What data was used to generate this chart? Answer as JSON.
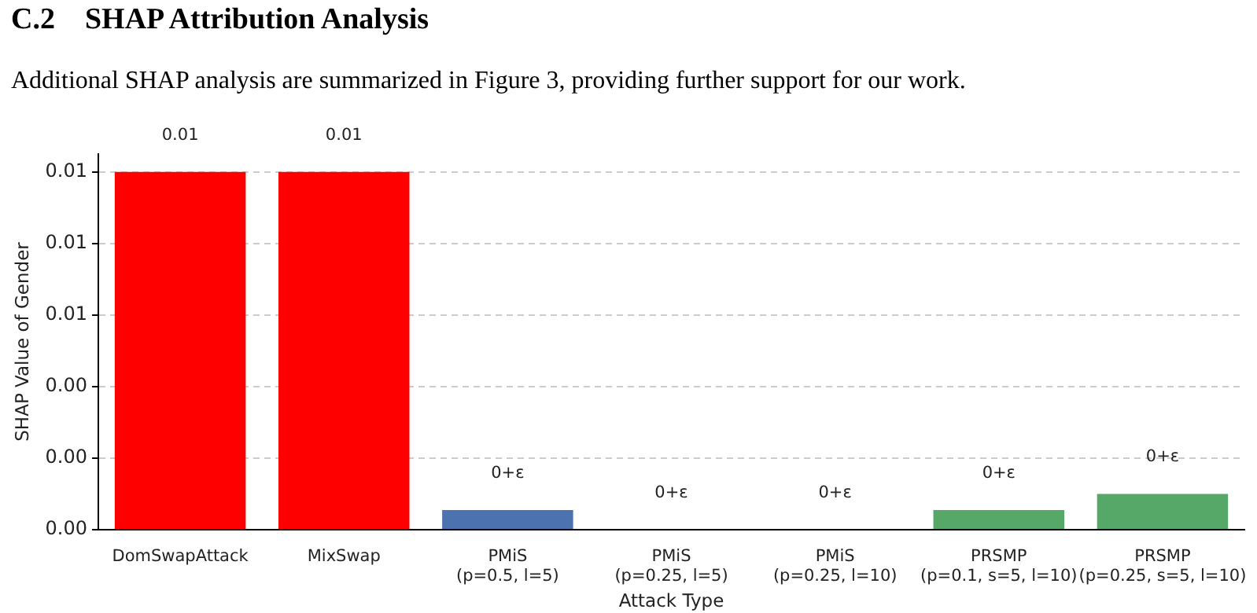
{
  "chart_data": {
    "type": "bar",
    "title": "C.2    SHAP Attribution Analysis",
    "subtitle": "Additional SHAP analysis are summarized in Figure 3, providing further support for our work.",
    "xlabel": "Attack Type",
    "ylabel": "SHAP Value of Gender",
    "categories": [
      "DomSwapAttack",
      "MixSwap",
      "PMiS\n(p=0.5, l=5)",
      "PMiS\n(p=0.25, l=5)",
      "PMiS\n(p=0.25, l=10)",
      "PRSMP\n(p=0.1, s=5, l=10)",
      "PRSMP\n(p=0.25, s=5, l=10)"
    ],
    "values": [
      0.01,
      0.01,
      0.00055,
      0,
      0,
      0.00055,
      0.001
    ],
    "colors": [
      "#ff0000",
      "#ff0000",
      "#4c72b0",
      "#4c72b0",
      "#4c72b0",
      "#55a868",
      "#55a868"
    ],
    "value_labels": [
      "0.01",
      "0.01",
      "0+ε",
      "0+ε",
      "0+ε",
      "0+ε",
      "0+ε"
    ],
    "ylim": [
      0,
      0.0105
    ],
    "yticks": [
      {
        "value": 0,
        "label": "0.00"
      },
      {
        "value": 0.002,
        "label": "0.00"
      },
      {
        "value": 0.004,
        "label": "0.00"
      },
      {
        "value": 0.006,
        "label": "0.01"
      },
      {
        "value": 0.008,
        "label": "0.01"
      },
      {
        "value": 0.01,
        "label": "0.01"
      }
    ],
    "grid": "y",
    "legend": false
  }
}
